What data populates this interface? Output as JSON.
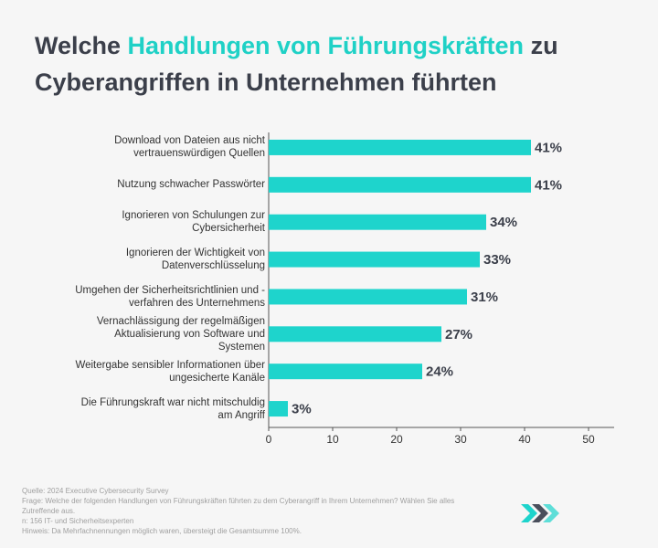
{
  "chart_data": {
    "type": "bar",
    "orientation": "horizontal",
    "title": [
      "Welche ",
      "Handlungen von Führungskräften",
      " zu Cyberangriffen in Unternehmen führten"
    ],
    "title_highlight_color": "#1fd1c6",
    "categories": [
      "Download von Dateien aus nicht vertrauenswürdigen Quellen",
      "Nutzung schwacher Passwörter",
      "Ignorieren von Schulungen zur Cybersicherheit",
      "Ignorieren der Wichtigkeit von Datenverschlüsselung",
      "Umgehen der Sicherheitsrichtlinien und -verfahren des Unternehmens",
      "Vernachlässigung der regelmäßigen Aktualisierung von Software und Systemen",
      "Weitergabe sensibler Informationen über ungesicherte Kanäle",
      "Die Führungskraft war nicht mitschuldig am Angriff"
    ],
    "values": [
      41,
      41,
      34,
      33,
      31,
      27,
      24,
      3
    ],
    "value_labels": [
      "41%",
      "41%",
      "34%",
      "33%",
      "31%",
      "27%",
      "24%",
      "3%"
    ],
    "color": "#1ed4cc",
    "xlim": [
      0,
      54
    ],
    "xticks": [
      0,
      10,
      20,
      30,
      40,
      50
    ],
    "grid": false,
    "footer": [
      "Quelle: 2024 Executive Cybersecurity Survey",
      "Frage: Welche der folgenden Handlungen von Führungskräften führten zu dem Cyberangriff in Ihrem Unternehmen? Wählen Sie alles Zutreffende aus.",
      "n: 156 IT- und Sicherheitsexperten",
      "Hinweis: Da Mehrfachnennungen möglich waren, übersteigt die Gesamtsumme 100%."
    ],
    "logo": "GetApp"
  }
}
